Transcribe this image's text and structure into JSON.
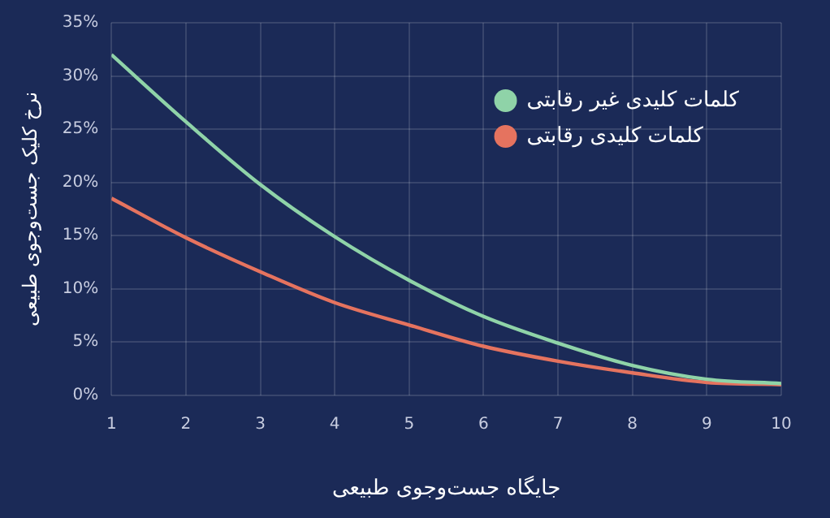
{
  "chart_data": {
    "type": "line",
    "xlabel": "جایگاه جست‌وجوی طبیعی",
    "ylabel": "نرخ کلیک جست‌وجوی طبیعی",
    "x": [
      1,
      2,
      3,
      4,
      5,
      6,
      7,
      8,
      9,
      10
    ],
    "series": [
      {
        "name": "کلمات کلیدی غیر رقابتی",
        "color": "#8fd3a8",
        "values": [
          32,
          25.7,
          19.8,
          14.9,
          10.8,
          7.4,
          4.9,
          2.8,
          1.5,
          1.1
        ]
      },
      {
        "name": "کلمات کلیدی رقابتی",
        "color": "#e5735f",
        "values": [
          18.5,
          14.8,
          11.6,
          8.7,
          6.6,
          4.6,
          3.2,
          2.1,
          1.2,
          1.0
        ]
      }
    ],
    "xlim": [
      1,
      10
    ],
    "xticks": [
      1,
      2,
      3,
      4,
      5,
      6,
      7,
      8,
      9,
      10
    ],
    "ylim": [
      0,
      35
    ],
    "yticks": [
      {
        "value": 0,
        "label": "0%"
      },
      {
        "value": 5,
        "label": "5%"
      },
      {
        "value": 10,
        "label": "10%"
      },
      {
        "value": 15,
        "label": "15%"
      },
      {
        "value": 20,
        "label": "20%"
      },
      {
        "value": 25,
        "label": "25%"
      },
      {
        "value": 30,
        "label": "30%"
      },
      {
        "value": 35,
        "label": "35%"
      }
    ],
    "grid": true,
    "legend": "top right",
    "marker": "none",
    "line_style": "solid"
  }
}
